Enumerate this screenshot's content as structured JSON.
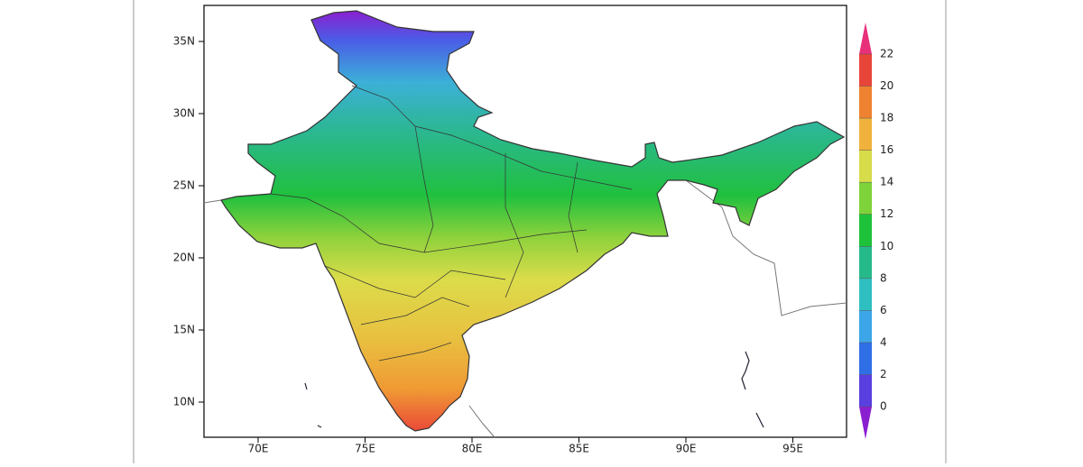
{
  "map": {
    "lat_ticks": [
      {
        "value": 35,
        "label": "35N"
      },
      {
        "value": 30,
        "label": "30N"
      },
      {
        "value": 25,
        "label": "25N"
      },
      {
        "value": 20,
        "label": "20N"
      },
      {
        "value": 15,
        "label": "15N"
      },
      {
        "value": 10,
        "label": "10N"
      }
    ],
    "lon_ticks": [
      {
        "value": 70,
        "label": "70E"
      },
      {
        "value": 75,
        "label": "75E"
      },
      {
        "value": 80,
        "label": "80E"
      },
      {
        "value": 85,
        "label": "85E"
      },
      {
        "value": 90,
        "label": "90E"
      },
      {
        "value": 95,
        "label": "95E"
      }
    ],
    "colorbar": {
      "labels": [
        0,
        2,
        4,
        6,
        8,
        10,
        12,
        14,
        16,
        18,
        20,
        22
      ],
      "colors": [
        "#8a1fd0",
        "#5a3fe0",
        "#2f6fe6",
        "#3ca6e8",
        "#2fbfc0",
        "#26b98a",
        "#1ec23a",
        "#7ed23a",
        "#d6dc4a",
        "#f0b23c",
        "#ee8230",
        "#e8453a",
        "#e8307a"
      ]
    }
  }
}
